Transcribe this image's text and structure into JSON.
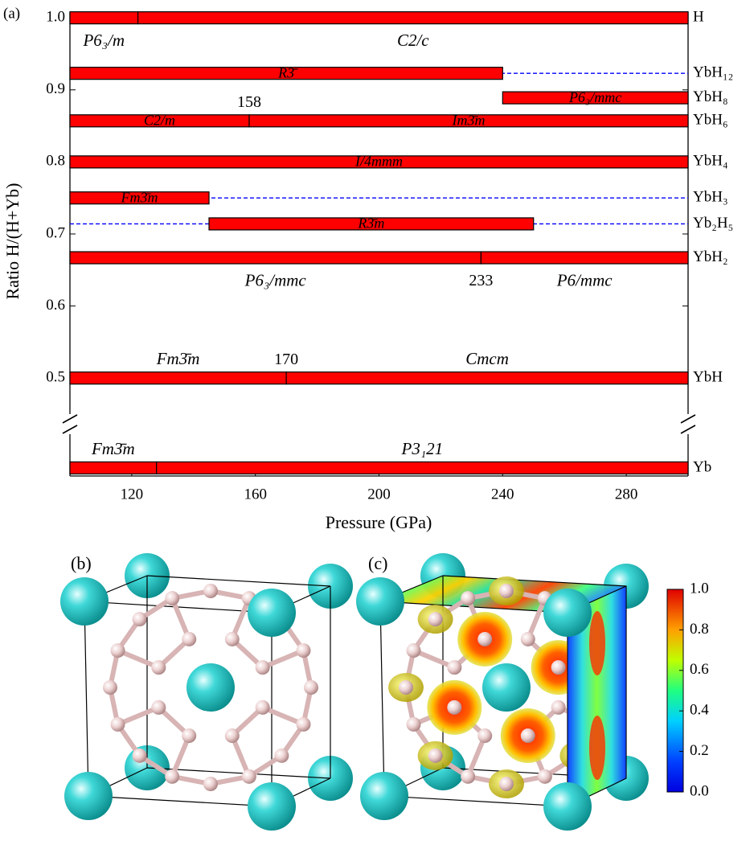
{
  "chart_data": {
    "type": "phase",
    "panel_label": "(a)",
    "xlabel": "Pressure (GPa)",
    "ylabel": "Ratio H/(H+Yb)",
    "xlim": [
      100,
      300
    ],
    "xticks": [
      120,
      160,
      200,
      240,
      280
    ],
    "ylim": [
      0.45,
      1.008
    ],
    "yticks": [
      0.5,
      0.6,
      0.7,
      0.8,
      0.9,
      {
        "value": 1,
        "label": "1.0"
      }
    ],
    "color": "#ff0000",
    "dash_color": "#0000ff",
    "rows": [
      {
        "name": "H",
        "ratio": 1,
        "label_pos": "below",
        "phases": [
          {
            "name": "P6₃/m",
            "from": 100,
            "to": 122
          },
          {
            "name": "C2/c",
            "from": 122,
            "to": 300
          }
        ]
      },
      {
        "name": "YbH₁₂",
        "ratio": 0.923,
        "label_pos": "inside",
        "dashed": true,
        "phases": [
          {
            "name": "R3̄",
            "from": 100,
            "to": 240
          }
        ]
      },
      {
        "name": "YbH₈",
        "ratio": 0.889,
        "label_pos": "inside",
        "phases": [
          {
            "name": "P6₃/mmc",
            "from": 240,
            "to": 300
          }
        ]
      },
      {
        "name": "YbH₆",
        "ratio": 0.857,
        "label_pos": "inside",
        "phases": [
          {
            "name": "C2/m",
            "from": 100,
            "to": 158
          },
          {
            "name": "Im3̄m",
            "from": 158,
            "to": 300,
            "annotate": "above"
          }
        ]
      },
      {
        "name": "YbH₄",
        "ratio": 0.8,
        "label_pos": "inside",
        "phases": [
          {
            "name": "I/4mmm",
            "from": 100,
            "to": 300
          }
        ]
      },
      {
        "name": "YbH₃",
        "ratio": 0.75,
        "label_pos": "inside",
        "dashed": true,
        "phases": [
          {
            "name": "Fm3̄m",
            "from": 100,
            "to": 145
          }
        ]
      },
      {
        "name": "Yb₂H₅",
        "ratio": 0.714,
        "label_pos": "inside",
        "dashed": true,
        "phases": [
          {
            "name": "R3̄m",
            "from": 145,
            "to": 250
          }
        ]
      },
      {
        "name": "YbH₂",
        "ratio": 0.667,
        "label_pos": "below",
        "phases": [
          {
            "name": "P6₃/mmc",
            "from": 100,
            "to": 233
          },
          {
            "name": "P6/mmc",
            "from": 233,
            "to": 300,
            "annotate": "below"
          }
        ]
      },
      {
        "name": "YbH",
        "ratio": 0.5,
        "label_pos": "above",
        "phases": [
          {
            "name": "Fm3̄m",
            "from": 100,
            "to": 170
          },
          {
            "name": "Cmcm",
            "from": 170,
            "to": 300,
            "annotate": "above"
          }
        ]
      },
      {
        "name": "Yb",
        "ratio": 0,
        "label_pos": "above",
        "phases": [
          {
            "name": "Fm3̄m",
            "from": 100,
            "to": 128
          },
          {
            "name": "P3₁21",
            "from": 128,
            "to": 300
          }
        ]
      }
    ]
  },
  "panels": {
    "b": "(b)",
    "c": "(c)"
  },
  "colorbar": {
    "clim": [
      0,
      1
    ],
    "ticks": [
      {
        "value": 0,
        "label": "0.0"
      },
      0.2,
      0.4,
      0.6,
      0.8,
      {
        "value": 1,
        "label": "1.0"
      }
    ]
  }
}
